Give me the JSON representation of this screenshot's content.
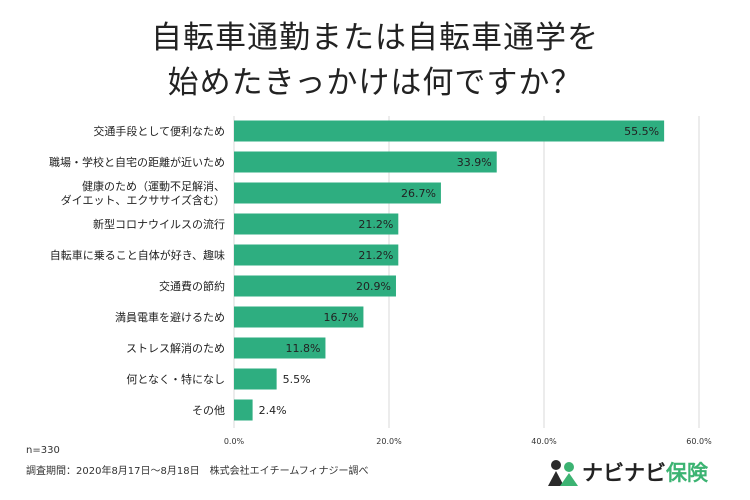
{
  "title": {
    "line1": "自転車通勤または自転車通学を",
    "line2": "始めたきっかけは何ですか？"
  },
  "chart_data": {
    "type": "bar",
    "orientation": "horizontal",
    "categories": [
      [
        "交通手段として便利なため"
      ],
      [
        "職場・学校と自宅の距離が近いため"
      ],
      [
        "健康のため（運動不足解消、",
        "ダイエット、エクササイズ含む）"
      ],
      [
        "新型コロナウイルスの流行"
      ],
      [
        "自転車に乗ること自体が好き、趣味"
      ],
      [
        "交通費の節約"
      ],
      [
        "満員電車を避けるため"
      ],
      [
        "ストレス解消のため"
      ],
      [
        "何となく・特になし"
      ],
      [
        "その他"
      ]
    ],
    "values": [
      55.5,
      33.9,
      26.7,
      21.2,
      21.2,
      20.9,
      16.7,
      11.8,
      5.5,
      2.4
    ],
    "value_labels": [
      "55.5%",
      "33.9%",
      "26.7%",
      "21.2%",
      "21.2%",
      "20.9%",
      "16.7%",
      "11.8%",
      "5.5%",
      "2.4%"
    ],
    "xlim": [
      0,
      60
    ],
    "xticks": [
      0,
      20,
      40,
      60
    ],
    "xtick_labels": [
      "0.0%",
      "20.0%",
      "40.0%",
      "60.0%"
    ],
    "grid": true,
    "bar_color": "#2eae80",
    "grid_color": "#d9d9d9"
  },
  "footer": {
    "sample": "n=330",
    "survey": "調査期間：2020年8月17日〜8月18日　株式会社エイチームフィナジー調べ"
  },
  "logo": {
    "text_a": "ナビナビ",
    "text_b": "保険",
    "icon": "people-icon",
    "color_dark": "#2a2a2a",
    "color_green": "#3cb372"
  }
}
